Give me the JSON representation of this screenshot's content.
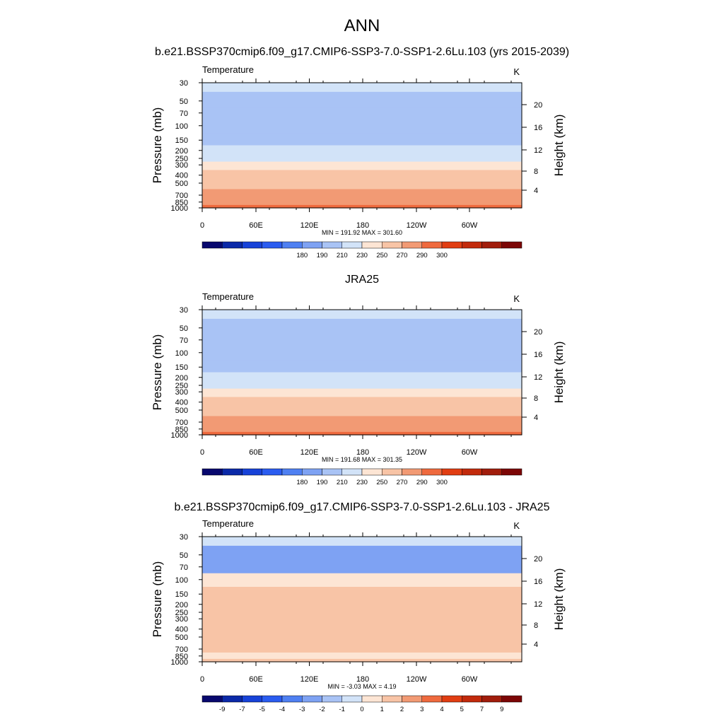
{
  "figure": {
    "title": "ANN"
  },
  "chart_data": [
    {
      "type": "heatmap",
      "title": "b.e21.BSSP370cmip6.f09_g17.CMIP6-SSP3-7.0-SSP1-2.6Lu.103 (yrs 2015-2039)",
      "left_label": "Temperature",
      "units": "K",
      "ylabel": "Pressure (mb)",
      "y2label": "Height (km)",
      "x_ticks": [
        "0",
        "60E",
        "120E",
        "180",
        "120W",
        "60W"
      ],
      "y_ticks": [
        "30",
        "50",
        "70",
        "100",
        "150",
        "200",
        "250",
        "300",
        "400",
        "500",
        "700",
        "850",
        "1000"
      ],
      "y2_ticks": [
        "20",
        "16",
        "12",
        "8",
        "4"
      ],
      "stats": "MIN = 191.92  MAX = 301.60",
      "colorbar": {
        "labels": [
          "180",
          "190",
          "210",
          "230",
          "250",
          "270",
          "290",
          "300"
        ],
        "colors": [
          "#08086e",
          "#0b29a8",
          "#1742d8",
          "#2a5cf0",
          "#4f80f2",
          "#7ea2f3",
          "#a9c3f5",
          "#d2e3f8",
          "#fde5d4",
          "#f8c4a6",
          "#f29a74",
          "#ef6a3e",
          "#e13d12",
          "#c22a0c",
          "#a11d0c",
          "#7c0606"
        ]
      },
      "profile": [
        {
          "p": "30",
          "value": 222
        },
        {
          "p": "50",
          "value": 206
        },
        {
          "p": "70",
          "value": 198
        },
        {
          "p": "100",
          "value": 196
        },
        {
          "p": "150",
          "value": 205
        },
        {
          "p": "200",
          "value": 219
        },
        {
          "p": "250",
          "value": 229
        },
        {
          "p": "300",
          "value": 237
        },
        {
          "p": "400",
          "value": 251
        },
        {
          "p": "500",
          "value": 261
        },
        {
          "p": "700",
          "value": 276
        },
        {
          "p": "850",
          "value": 285
        },
        {
          "p": "1000",
          "value": 292
        }
      ]
    },
    {
      "type": "heatmap",
      "title": "JRA25",
      "left_label": "Temperature",
      "units": "K",
      "ylabel": "Pressure (mb)",
      "y2label": "Height (km)",
      "x_ticks": [
        "0",
        "60E",
        "120E",
        "180",
        "120W",
        "60W"
      ],
      "y_ticks": [
        "30",
        "50",
        "70",
        "100",
        "150",
        "200",
        "250",
        "300",
        "400",
        "500",
        "700",
        "850",
        "1000"
      ],
      "y2_ticks": [
        "20",
        "16",
        "12",
        "8",
        "4"
      ],
      "stats": "MIN = 191.68  MAX = 301.35",
      "colorbar": {
        "labels": [
          "180",
          "190",
          "210",
          "230",
          "250",
          "270",
          "290",
          "300"
        ],
        "colors": [
          "#08086e",
          "#0b29a8",
          "#1742d8",
          "#2a5cf0",
          "#4f80f2",
          "#7ea2f3",
          "#a9c3f5",
          "#d2e3f8",
          "#fde5d4",
          "#f8c4a6",
          "#f29a74",
          "#ef6a3e",
          "#e13d12",
          "#c22a0c",
          "#a11d0c",
          "#7c0606"
        ]
      },
      "profile": [
        {
          "p": "30",
          "value": 222
        },
        {
          "p": "50",
          "value": 206
        },
        {
          "p": "70",
          "value": 198
        },
        {
          "p": "100",
          "value": 196
        },
        {
          "p": "150",
          "value": 204
        },
        {
          "p": "200",
          "value": 218
        },
        {
          "p": "250",
          "value": 228
        },
        {
          "p": "300",
          "value": 236
        },
        {
          "p": "400",
          "value": 250
        },
        {
          "p": "500",
          "value": 260
        },
        {
          "p": "700",
          "value": 275
        },
        {
          "p": "850",
          "value": 284
        },
        {
          "p": "1000",
          "value": 291
        }
      ]
    },
    {
      "type": "heatmap",
      "title": "b.e21.BSSP370cmip6.f09_g17.CMIP6-SSP3-7.0-SSP1-2.6Lu.103 - JRA25",
      "left_label": "Temperature",
      "units": "K",
      "ylabel": "Pressure (mb)",
      "y2label": "Height (km)",
      "x_ticks": [
        "0",
        "60E",
        "120E",
        "180",
        "120W",
        "60W"
      ],
      "y_ticks": [
        "30",
        "50",
        "70",
        "100",
        "150",
        "200",
        "250",
        "300",
        "400",
        "500",
        "700",
        "850",
        "1000"
      ],
      "y2_ticks": [
        "20",
        "16",
        "12",
        "8",
        "4"
      ],
      "stats": "MIN =  -3.03  MAX =   4.19",
      "colorbar": {
        "labels": [
          "-9",
          "-7",
          "-5",
          "-4",
          "-3",
          "-2",
          "-1",
          "0",
          "1",
          "2",
          "3",
          "4",
          "5",
          "7",
          "9"
        ],
        "colors": [
          "#08086e",
          "#0b29a8",
          "#1742d8",
          "#2a5cf0",
          "#4f80f2",
          "#7ea2f3",
          "#a9c3f5",
          "#d2e3f8",
          "#fde5d4",
          "#f8c4a6",
          "#f29a74",
          "#ef6a3e",
          "#e13d12",
          "#c22a0c",
          "#a11d0c",
          "#7c0606"
        ]
      },
      "profile": [
        {
          "p": "30",
          "value": -0.5
        },
        {
          "p": "50",
          "value": -2.5
        },
        {
          "p": "70",
          "value": -3.0
        },
        {
          "p": "100",
          "value": 0.5
        },
        {
          "p": "150",
          "value": 1.5
        },
        {
          "p": "200",
          "value": 1.5
        },
        {
          "p": "250",
          "value": 1.5
        },
        {
          "p": "300",
          "value": 1.5
        },
        {
          "p": "400",
          "value": 1.6
        },
        {
          "p": "500",
          "value": 1.7
        },
        {
          "p": "700",
          "value": 1.2
        },
        {
          "p": "850",
          "value": 0.5
        },
        {
          "p": "1000",
          "value": 1.5
        }
      ]
    }
  ]
}
